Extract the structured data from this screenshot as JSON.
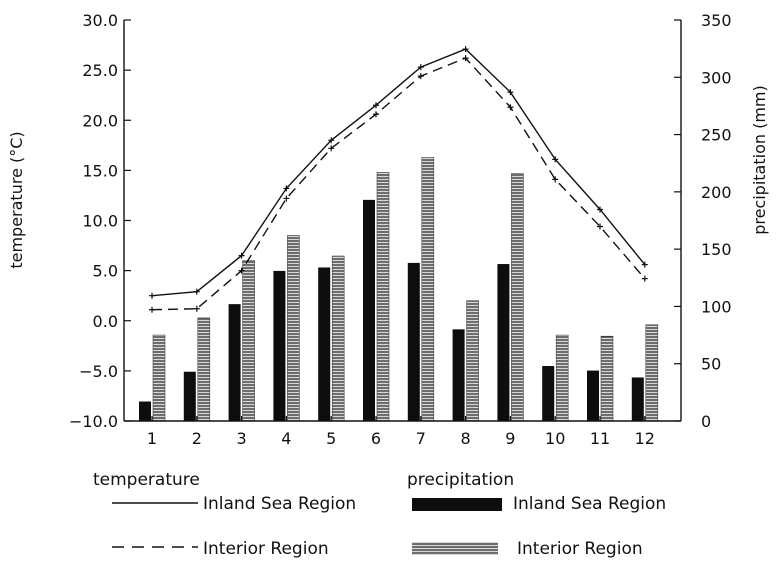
{
  "chart_data": {
    "type": "bar",
    "title": "",
    "xlabel": "",
    "ylabel_left": "temperature (°C)",
    "ylabel_right": "precipitation (mm)",
    "x": [
      "1",
      "2",
      "3",
      "4",
      "5",
      "6",
      "7",
      "8",
      "9",
      "10",
      "11",
      "12"
    ],
    "temperature_ylim": [
      -10,
      30
    ],
    "temperature_ticks": [
      "30.0",
      "25.0",
      "20.0",
      "15.0",
      "10.0",
      "5.0",
      "0.0",
      "−5.0",
      "−10.0"
    ],
    "precipitation_ylim": [
      0,
      350
    ],
    "precipitation_ticks": [
      "350",
      "300",
      "250",
      "200",
      "150",
      "100",
      "50",
      "0"
    ],
    "line_series": [
      {
        "name": "Inland Sea Region",
        "style": "solid",
        "values": [
          2.5,
          2.9,
          6.5,
          13.2,
          18.0,
          21.5,
          25.3,
          27.1,
          22.8,
          16.1,
          11.1,
          5.6
        ]
      },
      {
        "name": "Interior Region",
        "style": "dashed",
        "values": [
          1.1,
          1.2,
          5.0,
          12.2,
          17.2,
          20.6,
          24.4,
          26.2,
          21.3,
          14.1,
          9.4,
          4.2
        ]
      }
    ],
    "bar_series": [
      {
        "name": "Inland Sea Region",
        "style": "solid",
        "values": [
          17,
          43,
          102,
          131,
          134,
          193,
          138,
          80,
          137,
          48,
          44,
          38
        ]
      },
      {
        "name": "Interior Region",
        "style": "hatched",
        "values": [
          75,
          90,
          140,
          162,
          144,
          217,
          230,
          105,
          216,
          75,
          74,
          84
        ]
      }
    ],
    "legend": {
      "temperature_heading": "temperature",
      "precipitation_heading": "precipitation"
    },
    "grid": false
  },
  "colors": {
    "ink": "#111111",
    "bar_solid": "#0d0d0d",
    "bar_hatch_bg": "#d8d8d8",
    "bar_hatch_line": "#333333"
  }
}
